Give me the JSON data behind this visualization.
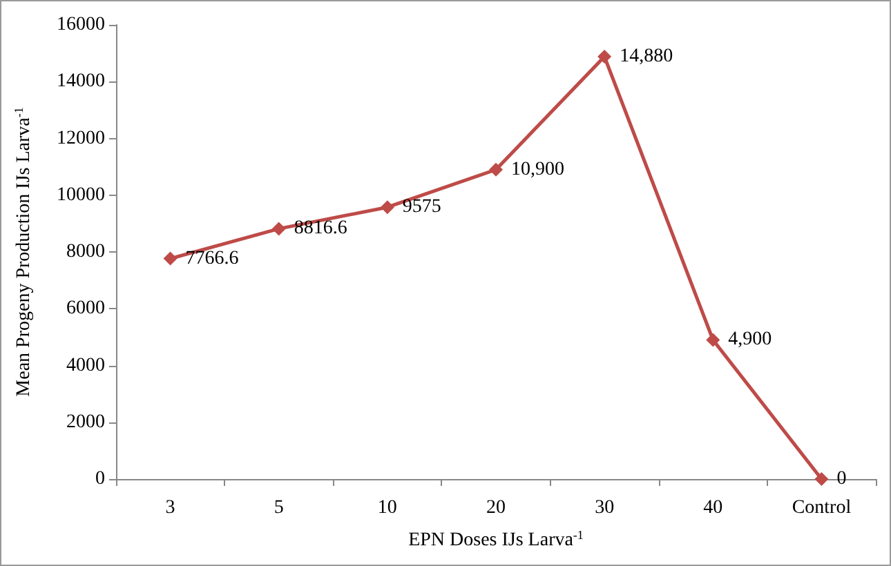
{
  "chart_data": {
    "type": "line",
    "xlabel": "EPN Doses IJs Larva$^{-1}$",
    "ylabel": "Mean Progeny Production IJs Larva$^{-1}$",
    "categories": [
      "3",
      "5",
      "10",
      "20",
      "30",
      "40",
      "Control"
    ],
    "series": [
      {
        "color": "#be4b48",
        "values": [
          7766.6,
          8816.6,
          9575,
          10900,
          14880,
          4900,
          0
        ],
        "value_labels": [
          "7766.6",
          "8816.6",
          "9575",
          "10,900",
          "14,880",
          "4,900",
          "0"
        ]
      }
    ],
    "ylim": [
      0,
      16000
    ],
    "yticks": [
      0,
      2000,
      4000,
      6000,
      8000,
      10000,
      12000,
      14000,
      16000
    ],
    "grid": false,
    "marker": "diamond",
    "line_style": "solid"
  }
}
